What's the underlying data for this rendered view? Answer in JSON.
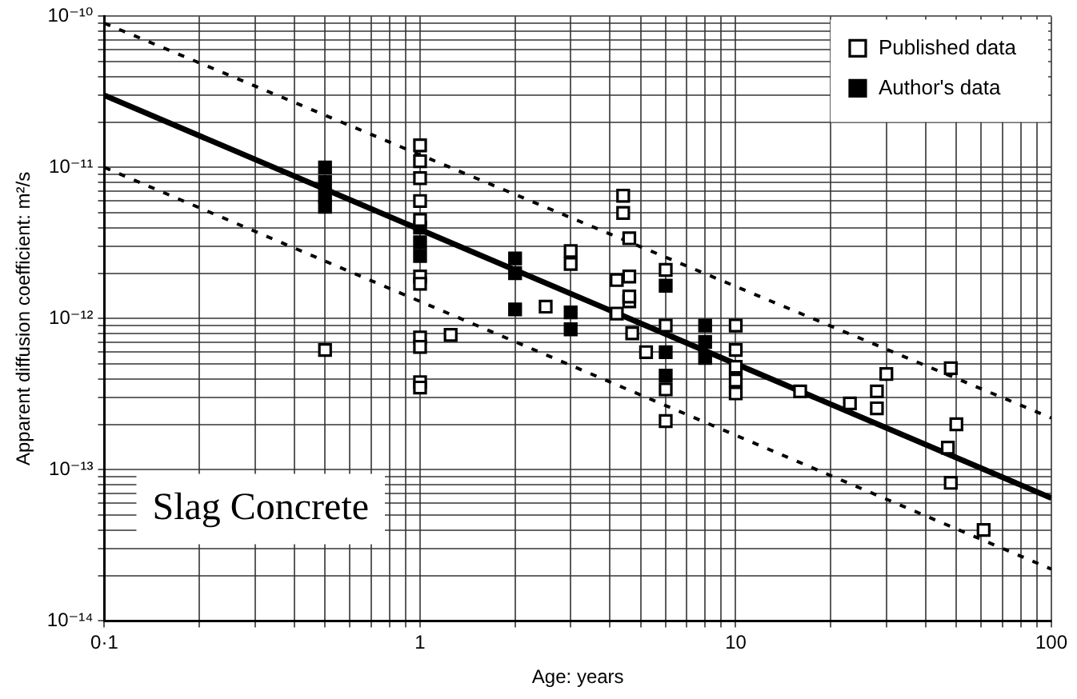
{
  "chart_data": {
    "type": "scatter",
    "xlabel": "Age: years",
    "ylabel": "Apparent diffusion coefficient: m²/s",
    "log": "xy",
    "grid": true,
    "legend": "top right",
    "marker": "square",
    "annotations": [
      "Slag Concrete"
    ],
    "xlim": [
      0.1,
      100
    ],
    "ylim": [
      1e-14,
      1e-10
    ],
    "xticks": [
      {
        "value": 0.1,
        "label": "0·1"
      },
      {
        "value": 0.2,
        "label": null
      },
      {
        "value": 0.3,
        "label": null
      },
      {
        "value": 0.4,
        "label": null
      },
      {
        "value": 0.5,
        "label": null
      },
      {
        "value": 0.6,
        "label": null
      },
      {
        "value": 0.7,
        "label": null
      },
      {
        "value": 0.8,
        "label": null
      },
      {
        "value": 0.9,
        "label": null
      },
      1,
      {
        "value": 2,
        "label": null
      },
      {
        "value": 3,
        "label": null
      },
      {
        "value": 4,
        "label": null
      },
      {
        "value": 5,
        "label": null
      },
      {
        "value": 6,
        "label": null
      },
      {
        "value": 7,
        "label": null
      },
      {
        "value": 8,
        "label": null
      },
      {
        "value": 9,
        "label": null
      },
      10,
      {
        "value": 20,
        "label": null
      },
      {
        "value": 30,
        "label": null
      },
      {
        "value": 40,
        "label": null
      },
      {
        "value": 50,
        "label": null
      },
      {
        "value": 60,
        "label": null
      },
      {
        "value": 70,
        "label": null
      },
      {
        "value": 80,
        "label": null
      },
      {
        "value": 90,
        "label": null
      },
      100
    ],
    "yticks": [
      {
        "value": 1e-14,
        "label": "10⁻¹⁴"
      },
      {
        "value": 2e-14,
        "label": null
      },
      {
        "value": 3e-14,
        "label": null
      },
      {
        "value": 4e-14,
        "label": null
      },
      {
        "value": 5e-14,
        "label": null
      },
      {
        "value": 6e-14,
        "label": null
      },
      {
        "value": 7e-14,
        "label": null
      },
      {
        "value": 8e-14,
        "label": null
      },
      {
        "value": 9e-14,
        "label": null
      },
      {
        "value": 1e-13,
        "label": "10⁻¹³"
      },
      {
        "value": 2e-13,
        "label": null
      },
      {
        "value": 3e-13,
        "label": null
      },
      {
        "value": 4e-13,
        "label": null
      },
      {
        "value": 5e-13,
        "label": null
      },
      {
        "value": 6e-13,
        "label": null
      },
      {
        "value": 7e-13,
        "label": null
      },
      {
        "value": 8e-13,
        "label": null
      },
      {
        "value": 9e-13,
        "label": null
      },
      {
        "value": 1e-12,
        "label": "10⁻¹²"
      },
      {
        "value": 2e-12,
        "label": null
      },
      {
        "value": 3e-12,
        "label": null
      },
      {
        "value": 4e-12,
        "label": null
      },
      {
        "value": 5e-12,
        "label": null
      },
      {
        "value": 6e-12,
        "label": null
      },
      {
        "value": 7e-12,
        "label": null
      },
      {
        "value": 8e-12,
        "label": null
      },
      {
        "value": 9e-12,
        "label": null
      },
      {
        "value": 1e-11,
        "label": "10⁻¹¹"
      },
      {
        "value": 2e-11,
        "label": null
      },
      {
        "value": 3e-11,
        "label": null
      },
      {
        "value": 4e-11,
        "label": null
      },
      {
        "value": 5e-11,
        "label": null
      },
      {
        "value": 6e-11,
        "label": null
      },
      {
        "value": 7e-11,
        "label": null
      },
      {
        "value": 8e-11,
        "label": null
      },
      {
        "value": 9e-11,
        "label": null
      },
      {
        "value": 1e-10,
        "label": "10⁻¹⁰"
      }
    ],
    "series": [
      {
        "name": "Published data",
        "color": "#ffffff",
        "x": [
          0.5,
          1,
          1,
          1,
          1,
          1,
          1,
          1,
          1,
          1,
          1,
          1,
          1.25,
          2.5,
          3,
          3,
          4.4,
          4.4,
          4.6,
          4.6,
          4.2,
          4.6,
          4.2,
          4.7,
          5.2,
          4.6,
          6,
          6,
          6,
          6,
          10,
          10,
          10,
          10,
          10,
          16,
          23,
          28,
          28,
          30,
          48,
          50,
          47,
          48,
          61
        ],
        "values": [
          6.2e-13,
          1.4e-11,
          1.1e-11,
          8.5e-12,
          6e-12,
          4.5e-12,
          1.9e-12,
          1.7e-12,
          7.5e-13,
          6.5e-13,
          3.8e-13,
          3.5e-13,
          7.8e-13,
          1.2e-12,
          2.8e-12,
          2.3e-12,
          6.5e-12,
          5e-12,
          3.4e-12,
          1.9e-12,
          1.8e-12,
          1.3e-12,
          1.08e-12,
          8e-13,
          6e-13,
          1.4e-12,
          2.1e-12,
          9e-13,
          3.4e-13,
          2.1e-13,
          9e-13,
          6.2e-13,
          4.8e-13,
          3.9e-13,
          3.2e-13,
          3.3e-13,
          2.75e-13,
          3.3e-13,
          2.55e-13,
          4.3e-13,
          4.7e-13,
          2e-13,
          1.4e-13,
          8.2e-14,
          4e-14
        ]
      },
      {
        "name": "Author's data",
        "color": "#000000",
        "x": [
          0.5,
          0.5,
          0.5,
          0.5,
          1,
          1,
          1,
          2,
          2,
          2,
          3,
          3,
          6,
          6,
          6,
          8,
          8,
          8
        ],
        "values": [
          1e-11,
          8e-12,
          6.5e-12,
          5.5e-12,
          4e-12,
          3.2e-12,
          2.6e-12,
          2.5e-12,
          2e-12,
          1.15e-12,
          1.1e-12,
          8.5e-13,
          1.65e-12,
          6e-13,
          4.2e-13,
          9e-13,
          7e-13,
          5.5e-13
        ]
      },
      {
        "type": "line",
        "color": "#000000",
        "marker": "none",
        "line_style": "solid",
        "x": [
          0.1,
          100
        ],
        "values": [
          3e-11,
          6.5e-14
        ]
      },
      {
        "type": "line",
        "color": "#000000",
        "marker": "none",
        "line_style": "dashed",
        "x": [
          0.1,
          100
        ],
        "values": [
          9e-11,
          2.2e-13
        ]
      },
      {
        "type": "line",
        "color": "#000000",
        "marker": "none",
        "line_style": "dashed",
        "x": [
          0.1,
          100
        ],
        "values": [
          1e-11,
          2.2e-14
        ]
      }
    ]
  }
}
